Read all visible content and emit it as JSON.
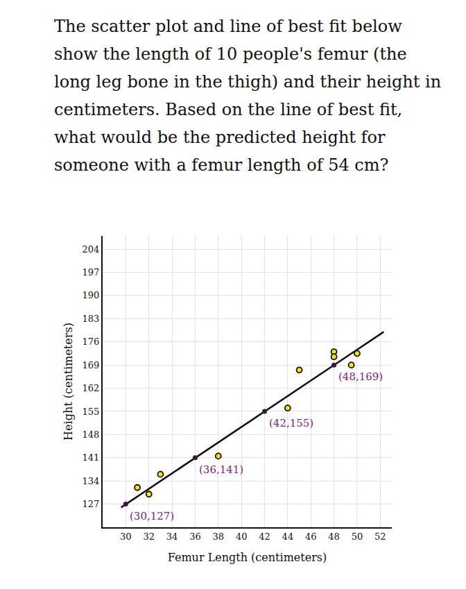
{
  "chart_data": {
    "type": "scatter",
    "title": "The scatter plot and line of best fit below show the length of 10 people's femur (the long leg bone in the thigh) and their height in centimeters. Based on the line of best fit, what would be the predicted height for someone with a femur length of 54 cm?",
    "x_label": "Femur Length (centimeters)",
    "y_label": "Height (centimeters)",
    "x": [
      31,
      32,
      33,
      38,
      44,
      45,
      48,
      48,
      49.5,
      50
    ],
    "values": [
      132,
      130,
      136,
      141.5,
      156,
      167.5,
      173,
      171.5,
      169,
      172.5
    ],
    "color": "#f2e600",
    "marker": "circle",
    "fit_line": {
      "x": [
        29.6,
        52.3
      ],
      "values": [
        126,
        179
      ],
      "color": "#111111"
    },
    "annotations": [
      {
        "x": 30,
        "y": 127,
        "text": "(30,127)",
        "color": "#7a1f7a"
      },
      {
        "x": 36,
        "y": 141,
        "text": "(36,141)",
        "color": "#7a1f7a"
      },
      {
        "x": 42,
        "y": 155,
        "text": "(42,155)",
        "color": "#7a1f7a"
      },
      {
        "x": 48,
        "y": 169,
        "text": "(48,169)",
        "color": "#7a1f7a"
      }
    ],
    "xlim": [
      28,
      53
    ],
    "xticks": [
      30,
      32,
      34,
      36,
      38,
      40,
      42,
      44,
      46,
      48,
      50,
      52
    ],
    "ylim": [
      120,
      208
    ],
    "yticks": [
      127,
      134,
      141,
      148,
      155,
      162,
      169,
      176,
      183,
      190,
      197,
      204
    ],
    "grid": true
  }
}
